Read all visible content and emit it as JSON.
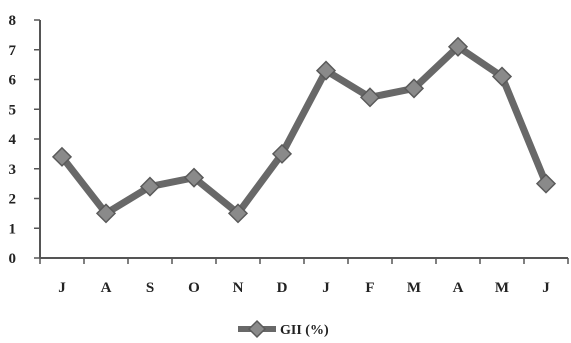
{
  "chart_data": {
    "type": "line",
    "title": "",
    "xlabel": "",
    "ylabel": "",
    "categories": [
      "J",
      "A",
      "S",
      "O",
      "N",
      "D",
      "J",
      "F",
      "M",
      "A",
      "M",
      "J"
    ],
    "series": [
      {
        "name": "GII (%)",
        "values": [
          3.4,
          1.5,
          2.4,
          2.7,
          1.5,
          3.5,
          6.3,
          5.4,
          5.7,
          7.1,
          6.1,
          2.5
        ]
      }
    ],
    "ylim": [
      0,
      8
    ],
    "yticks": [
      0,
      1,
      2,
      3,
      4,
      5,
      6,
      7,
      8
    ],
    "grid": false,
    "legend_position": "bottom-center",
    "colors": {
      "line": "#686868",
      "marker": "#8a8a8a",
      "axis": "#555555"
    },
    "marker": "diamond"
  }
}
